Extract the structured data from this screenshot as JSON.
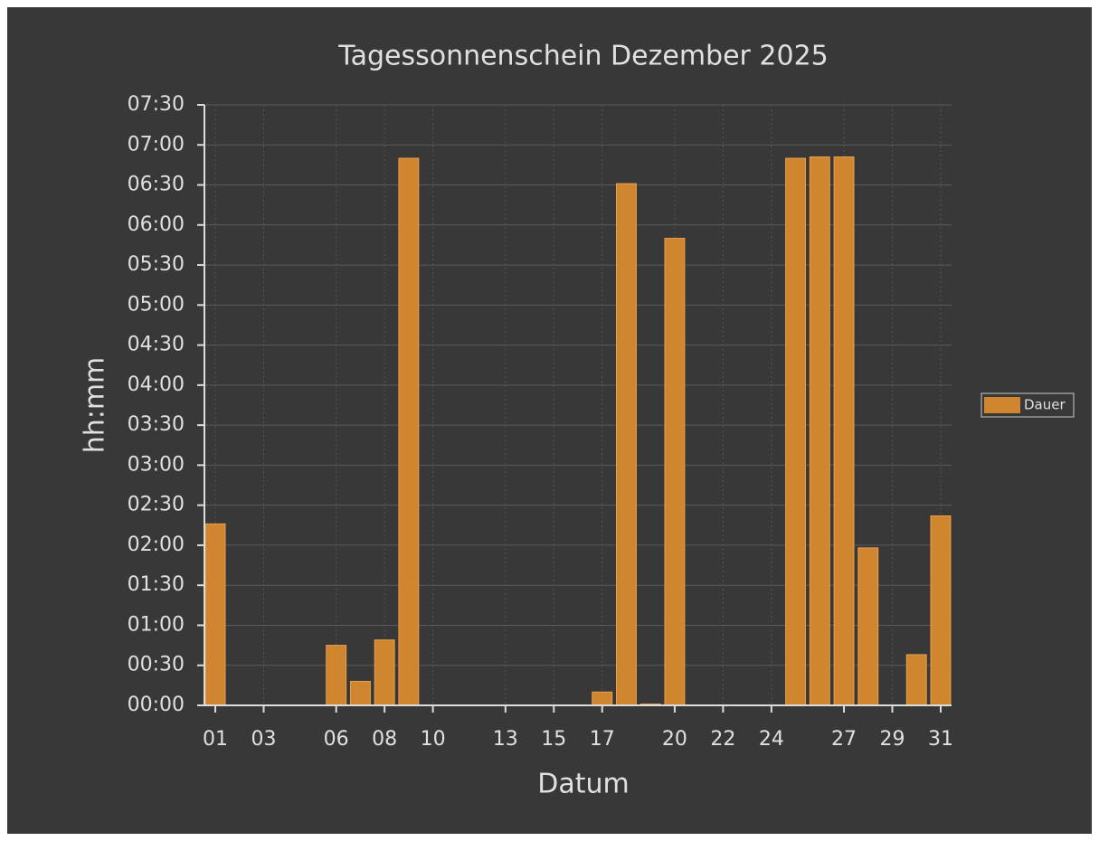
{
  "chart_data": {
    "type": "bar",
    "title": "Tagessonnenschein Dezember 2025",
    "xlabel": "Datum",
    "ylabel": "hh:mm",
    "x": [
      1,
      2,
      3,
      4,
      5,
      6,
      7,
      8,
      9,
      10,
      11,
      12,
      13,
      14,
      15,
      16,
      17,
      18,
      19,
      20,
      21,
      22,
      23,
      24,
      25,
      26,
      27,
      28,
      29,
      30,
      31
    ],
    "series": [
      {
        "name": "Dauer",
        "color": "#d0852f",
        "values": [
          136,
          0,
          0,
          0,
          0,
          45,
          18,
          49,
          410,
          0,
          0,
          0,
          0,
          0,
          0,
          0,
          10,
          391,
          1,
          350,
          0,
          0,
          0,
          0,
          410,
          411,
          411,
          118,
          0,
          38,
          142
        ]
      }
    ],
    "xlim": [
      0.55,
      31.45
    ],
    "xticks": [
      {
        "value": 1,
        "label": "01"
      },
      {
        "value": 3,
        "label": "03"
      },
      {
        "value": 6,
        "label": "06"
      },
      {
        "value": 8,
        "label": "08"
      },
      {
        "value": 10,
        "label": "10"
      },
      {
        "value": 13,
        "label": "13"
      },
      {
        "value": 15,
        "label": "15"
      },
      {
        "value": 17,
        "label": "17"
      },
      {
        "value": 20,
        "label": "20"
      },
      {
        "value": 22,
        "label": "22"
      },
      {
        "value": 24,
        "label": "24"
      },
      {
        "value": 27,
        "label": "27"
      },
      {
        "value": 29,
        "label": "29"
      },
      {
        "value": 31,
        "label": "31"
      }
    ],
    "ylim": [
      0,
      450
    ],
    "yticks": [
      {
        "value": 0,
        "label": "00:00"
      },
      {
        "value": 30,
        "label": "00:30"
      },
      {
        "value": 60,
        "label": "01:00"
      },
      {
        "value": 90,
        "label": "01:30"
      },
      {
        "value": 120,
        "label": "02:00"
      },
      {
        "value": 150,
        "label": "02:30"
      },
      {
        "value": 180,
        "label": "03:00"
      },
      {
        "value": 210,
        "label": "03:30"
      },
      {
        "value": 240,
        "label": "04:00"
      },
      {
        "value": 270,
        "label": "04:30"
      },
      {
        "value": 300,
        "label": "05:00"
      },
      {
        "value": 330,
        "label": "05:30"
      },
      {
        "value": 360,
        "label": "06:00"
      },
      {
        "value": 390,
        "label": "06:30"
      },
      {
        "value": 420,
        "label": "07:00"
      },
      {
        "value": 450,
        "label": "07:30"
      }
    ],
    "grid": true,
    "legend": "right"
  }
}
